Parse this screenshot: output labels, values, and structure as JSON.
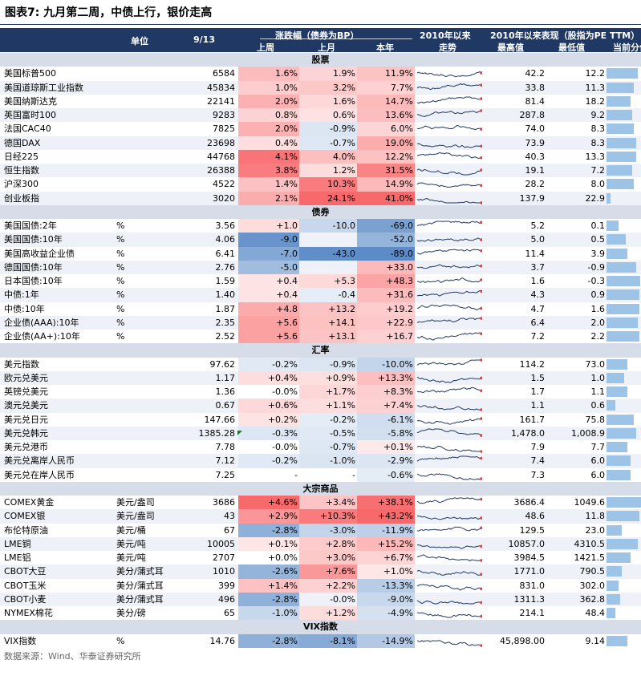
{
  "title": "图表7:  九月第二周，中债上行，银价走高",
  "header": {
    "unit": "单位",
    "date": "9/13",
    "change_group": "涨跌幅（债券为BP）",
    "week": "上周",
    "month": "上月",
    "ytd": "本年",
    "trend_top": "2010年以来",
    "trend_bottom": "走势",
    "since_group": "2010年以来表现（股指为PE TTM）",
    "high": "最高值",
    "low": "最低值",
    "pct": "当前分位"
  },
  "colors": {
    "header_bg": "#1f3864",
    "pos": "#f8696b",
    "neg": "#5a8ac6",
    "bar": "#9dc3e6"
  },
  "sections": [
    {
      "label": "股票",
      "rows": [
        {
          "name": "美国标普500",
          "unit": "",
          "value": "6584",
          "week": "1.6%",
          "month": "1.9%",
          "ytd": "11.9%",
          "high": "42.2",
          "low": "12.2",
          "pct": 0.9,
          "w": 1.6,
          "m": 1.9,
          "y": 11.9
        },
        {
          "name": "美国道琼斯工业指数",
          "unit": "",
          "value": "45834",
          "week": "1.0%",
          "month": "3.2%",
          "ytd": "7.7%",
          "high": "33.8",
          "low": "11.3",
          "pct": 0.8,
          "w": 1.0,
          "m": 3.2,
          "y": 7.7
        },
        {
          "name": "美国纳斯达克",
          "unit": "",
          "value": "22141",
          "week": "2.0%",
          "month": "1.6%",
          "ytd": "14.7%",
          "high": "81.4",
          "low": "18.2",
          "pct": 0.7,
          "w": 2.0,
          "m": 1.6,
          "y": 14.7
        },
        {
          "name": "英国富时100",
          "unit": "",
          "value": "9283",
          "week": "0.8%",
          "month": "0.6%",
          "ytd": "13.6%",
          "high": "287.8",
          "low": "9.2",
          "pct": 0.75,
          "w": 0.8,
          "m": 0.6,
          "y": 13.6
        },
        {
          "name": "法国CAC40",
          "unit": "",
          "value": "7825",
          "week": "2.0%",
          "month": "-0.9%",
          "ytd": "6.0%",
          "high": "74.0",
          "low": "8.3",
          "pct": 0.8,
          "w": 2.0,
          "m": -0.9,
          "y": 6.0
        },
        {
          "name": "德国DAX",
          "unit": "",
          "value": "23698",
          "week": "0.4%",
          "month": "-0.7%",
          "ytd": "19.0%",
          "high": "73.9",
          "low": "8.3",
          "pct": 0.85,
          "w": 0.4,
          "m": -0.7,
          "y": 19.0
        },
        {
          "name": "日经225",
          "unit": "",
          "value": "44768",
          "week": "4.1%",
          "month": "4.0%",
          "ytd": "12.2%",
          "high": "40.3",
          "low": "13.3",
          "pct": 0.85,
          "w": 4.1,
          "m": 4.0,
          "y": 12.2
        },
        {
          "name": "恒生指数",
          "unit": "",
          "value": "26388",
          "week": "3.8%",
          "month": "1.2%",
          "ytd": "31.5%",
          "high": "19.1",
          "low": "7.2",
          "pct": 0.75,
          "w": 3.8,
          "m": 1.2,
          "y": 31.5
        },
        {
          "name": "沪深300",
          "unit": "",
          "value": "4522",
          "week": "1.4%",
          "month": "10.3%",
          "ytd": "14.9%",
          "high": "28.2",
          "low": "8.0",
          "pct": 0.8,
          "w": 1.4,
          "m": 10.3,
          "y": 14.9
        },
        {
          "name": "创业板指",
          "unit": "",
          "value": "3020",
          "week": "2.1%",
          "month": "24.1%",
          "ytd": "41.0%",
          "high": "137.9",
          "low": "22.9",
          "pct": 0.12,
          "w": 2.1,
          "m": 24.1,
          "y": 41.0
        }
      ]
    },
    {
      "label": "债券",
      "rows": [
        {
          "name": "美国国债:2年",
          "unit": "%",
          "value": "3.56",
          "week": "+1.0",
          "month": "-10.0",
          "ytd": "-69.0",
          "high": "5.2",
          "low": "0.1",
          "pct": 0.35,
          "w": 1.0,
          "m": -10.0,
          "y": -69.0
        },
        {
          "name": "美国国债:10年",
          "unit": "%",
          "value": "4.06",
          "week": "-9.0",
          "month": "",
          "ytd": "-52.0",
          "high": "5.0",
          "low": "0.5",
          "pct": 0.55,
          "w": -9.0,
          "m": 0,
          "y": -52.0
        },
        {
          "name": "美国高收益企业债",
          "unit": "%",
          "value": "6.41",
          "week": "-7.0",
          "month": "-43.0",
          "ytd": "-89.0",
          "high": "11.4",
          "low": "3.9",
          "pct": 0.6,
          "w": -7.0,
          "m": -43.0,
          "y": -89.0
        },
        {
          "name": "德国国债:10年",
          "unit": "%",
          "value": "2.76",
          "week": "-5.0",
          "month": "",
          "ytd": "+33.0",
          "high": "3.7",
          "low": "-0.9",
          "pct": 0.85,
          "w": -5.0,
          "m": 0,
          "y": 33.0
        },
        {
          "name": "日本国债:10年",
          "unit": "%",
          "value": "1.59",
          "week": "+0.4",
          "month": "+5.3",
          "ytd": "+48.3",
          "high": "1.6",
          "low": "-0.3",
          "pct": 0.98,
          "w": 0.4,
          "m": 5.3,
          "y": 48.3
        },
        {
          "name": "中债:1年",
          "unit": "%",
          "value": "1.40",
          "week": "+0.4",
          "month": "-0.4",
          "ytd": "+31.6",
          "high": "4.3",
          "low": "0.9",
          "pct": 0.95,
          "w": 0.4,
          "m": -0.4,
          "y": 31.6
        },
        {
          "name": "中债:10年",
          "unit": "%",
          "value": "1.87",
          "week": "+4.8",
          "month": "+13.2",
          "ytd": "+19.2",
          "high": "4.7",
          "low": "1.6",
          "pct": 0.95,
          "w": 4.8,
          "m": 13.2,
          "y": 19.2
        },
        {
          "name": "企业债(AAA):10年",
          "unit": "%",
          "value": "2.35",
          "week": "+5.6",
          "month": "+14.1",
          "ytd": "+22.9",
          "high": "6.4",
          "low": "2.0",
          "pct": 0.9,
          "w": 5.6,
          "m": 14.1,
          "y": 22.9
        },
        {
          "name": "企业债(AA+):10年",
          "unit": "%",
          "value": "2.52",
          "week": "+5.6",
          "month": "+13.1",
          "ytd": "+16.7",
          "high": "7.2",
          "low": "2.2",
          "pct": 0.95,
          "w": 5.6,
          "m": 13.1,
          "y": 16.7
        }
      ]
    },
    {
      "label": "汇率",
      "rows": [
        {
          "name": "美元指数",
          "unit": "",
          "value": "97.62",
          "week": "-0.2%",
          "month": "-0.9%",
          "ytd": "-10.0%",
          "high": "114.2",
          "low": "73.0",
          "pct": 0.6,
          "w": -0.2,
          "m": -0.9,
          "y": -10.0
        },
        {
          "name": "欧元兑美元",
          "unit": "",
          "value": "1.17",
          "week": "+0.4%",
          "month": "+0.9%",
          "ytd": "+13.3%",
          "high": "1.5",
          "low": "1.0",
          "pct": 0.5,
          "w": 0.4,
          "m": 0.9,
          "y": 13.3
        },
        {
          "name": "英镑兑美元",
          "unit": "",
          "value": "1.36",
          "week": "-0.0%",
          "month": "+1.7%",
          "ytd": "+8.3%",
          "high": "1.7",
          "low": "1.1",
          "pct": 0.6,
          "w": 0,
          "m": 1.7,
          "y": 8.3
        },
        {
          "name": "澳元兑美元",
          "unit": "",
          "value": "0.67",
          "week": "+0.6%",
          "month": "+1.1%",
          "ytd": "+7.4%",
          "high": "1.1",
          "low": "0.6",
          "pct": 0.25,
          "w": 0.6,
          "m": 1.1,
          "y": 7.4
        },
        {
          "name": "美元兑日元",
          "unit": "",
          "value": "147.66",
          "week": "+0.2%",
          "month": "-0.2%",
          "ytd": "-6.1%",
          "high": "161.7",
          "low": "75.8",
          "pct": 0.8,
          "w": 0.2,
          "m": -0.2,
          "y": -6.1
        },
        {
          "name": "美元兑韩元",
          "unit": "",
          "value": "1385.28",
          "week": "-0.3%",
          "month": "-0.5%",
          "ytd": "-5.8%",
          "high": "1,478.0",
          "low": "1,008.9",
          "pct": 0.85,
          "w": -0.3,
          "m": -0.5,
          "y": -5.8
        },
        {
          "name": "美元兑港币",
          "unit": "",
          "value": "7.78",
          "week": "-0.0%",
          "month": "-0.7%",
          "ytd": "+0.1%",
          "high": "7.9",
          "low": "7.7",
          "pct": 0.6,
          "w": 0,
          "m": -0.7,
          "y": 0.1
        },
        {
          "name": "美元兑离岸人民币",
          "unit": "",
          "value": "7.12",
          "week": "-0.2%",
          "month": "-1.0%",
          "ytd": "-2.9%",
          "high": "7.4",
          "low": "6.0",
          "pct": 0.7,
          "w": -0.2,
          "m": -1.0,
          "y": -2.9
        },
        {
          "name": "美元兑在岸人民币",
          "unit": "",
          "value": "7.25",
          "week": "-",
          "month": "-",
          "ytd": "-0.6%",
          "high": "7.3",
          "low": "6.0",
          "pct": 0.7,
          "w": 0,
          "m": 0,
          "y": -0.6
        }
      ]
    },
    {
      "label": "大宗商品",
      "rows": [
        {
          "name": "COMEX黄金",
          "unit": "美元/盎司",
          "value": "3686",
          "week": "+4.6%",
          "month": "+3.4%",
          "ytd": "+38.1%",
          "high": "3686.4",
          "low": "1049.6",
          "pct": 1.0,
          "w": 4.6,
          "m": 3.4,
          "y": 38.1
        },
        {
          "name": "COMEX银",
          "unit": "美元/盎司",
          "value": "43",
          "week": "+2.9%",
          "month": "+10.3%",
          "ytd": "+43.2%",
          "high": "48.6",
          "low": "11.8",
          "pct": 0.95,
          "w": 2.9,
          "m": 10.3,
          "y": 43.2
        },
        {
          "name": "布伦特原油",
          "unit": "美元/桶",
          "value": "67",
          "week": "-2.8%",
          "month": "-3.0%",
          "ytd": "-11.9%",
          "high": "129.5",
          "low": "23.0",
          "pct": 0.45,
          "w": -2.8,
          "m": -3.0,
          "y": -11.9
        },
        {
          "name": "LME铜",
          "unit": "美元/吨",
          "value": "10005",
          "week": "+0.1%",
          "month": "+2.8%",
          "ytd": "+15.2%",
          "high": "10857.0",
          "low": "4310.5",
          "pct": 0.9,
          "w": 0.1,
          "m": 2.8,
          "y": 15.2
        },
        {
          "name": "LME铝",
          "unit": "美元/吨",
          "value": "2707",
          "week": "+0.0%",
          "month": "+3.0%",
          "ytd": "+6.7%",
          "high": "3984.5",
          "low": "1421.5",
          "pct": 0.7,
          "w": 0,
          "m": 3.0,
          "y": 6.7
        },
        {
          "name": "CBOT大豆",
          "unit": "美分/蒲式耳",
          "value": "1010",
          "week": "-2.6%",
          "month": "+7.6%",
          "ytd": "+1.0%",
          "high": "1771.0",
          "low": "790.5",
          "pct": 0.45,
          "w": -2.6,
          "m": 7.6,
          "y": 1.0
        },
        {
          "name": "CBOT玉米",
          "unit": "美分/蒲式耳",
          "value": "399",
          "week": "+1.4%",
          "month": "+2.2%",
          "ytd": "-13.3%",
          "high": "831.0",
          "low": "302.0",
          "pct": 0.35,
          "w": 1.4,
          "m": 2.2,
          "y": -13.3
        },
        {
          "name": "CBOT小麦",
          "unit": "美分/蒲式耳",
          "value": "496",
          "week": "-2.8%",
          "month": "-0.0%",
          "ytd": "-9.0%",
          "high": "1311.3",
          "low": "362.8",
          "pct": 0.4,
          "w": -2.8,
          "m": 0,
          "y": -9.0
        },
        {
          "name": "NYMEX棉花",
          "unit": "美分/磅",
          "value": "65",
          "week": "-1.0%",
          "month": "+1.2%",
          "ytd": "-4.9%",
          "high": "214.1",
          "low": "48.4",
          "pct": 0.25,
          "w": -1.0,
          "m": 1.2,
          "y": -4.9
        }
      ]
    },
    {
      "label": "VIX指数",
      "rows": [
        {
          "name": "VIX指数",
          "unit": "%",
          "value": "14.76",
          "week": "-2.8%",
          "month": "-8.1%",
          "ytd": "-14.9%",
          "high": "45,898.00",
          "low": "9.14",
          "pct": 0.6,
          "w": -2.8,
          "m": -8.1,
          "y": -14.9
        }
      ]
    }
  ],
  "source": "数据来源：Wind、华泰证券研究所"
}
